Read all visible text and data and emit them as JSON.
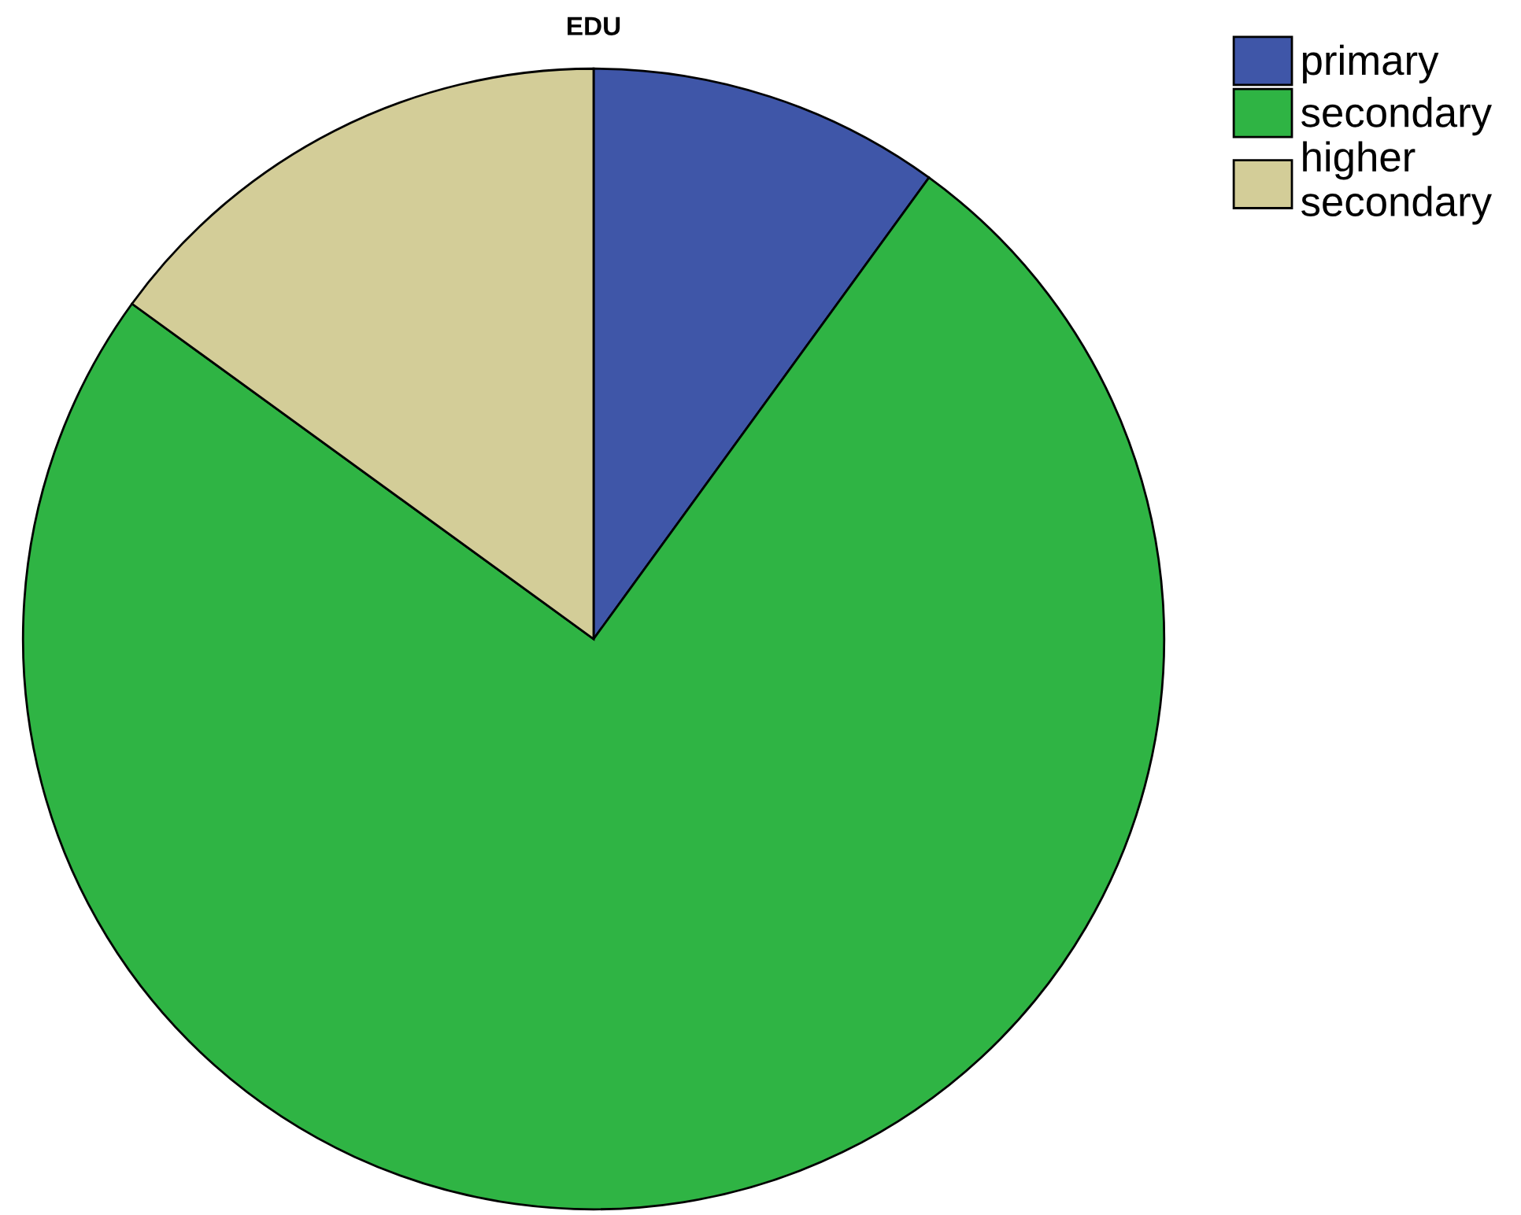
{
  "chart_data": {
    "type": "pie",
    "title": "EDU",
    "categories": [
      "primary",
      "secondary",
      "higher\nsecondary"
    ],
    "values": [
      10,
      75,
      15
    ],
    "colors": [
      "#3f56a8",
      "#2fb444",
      "#d3cd98"
    ],
    "legend": "top right"
  }
}
